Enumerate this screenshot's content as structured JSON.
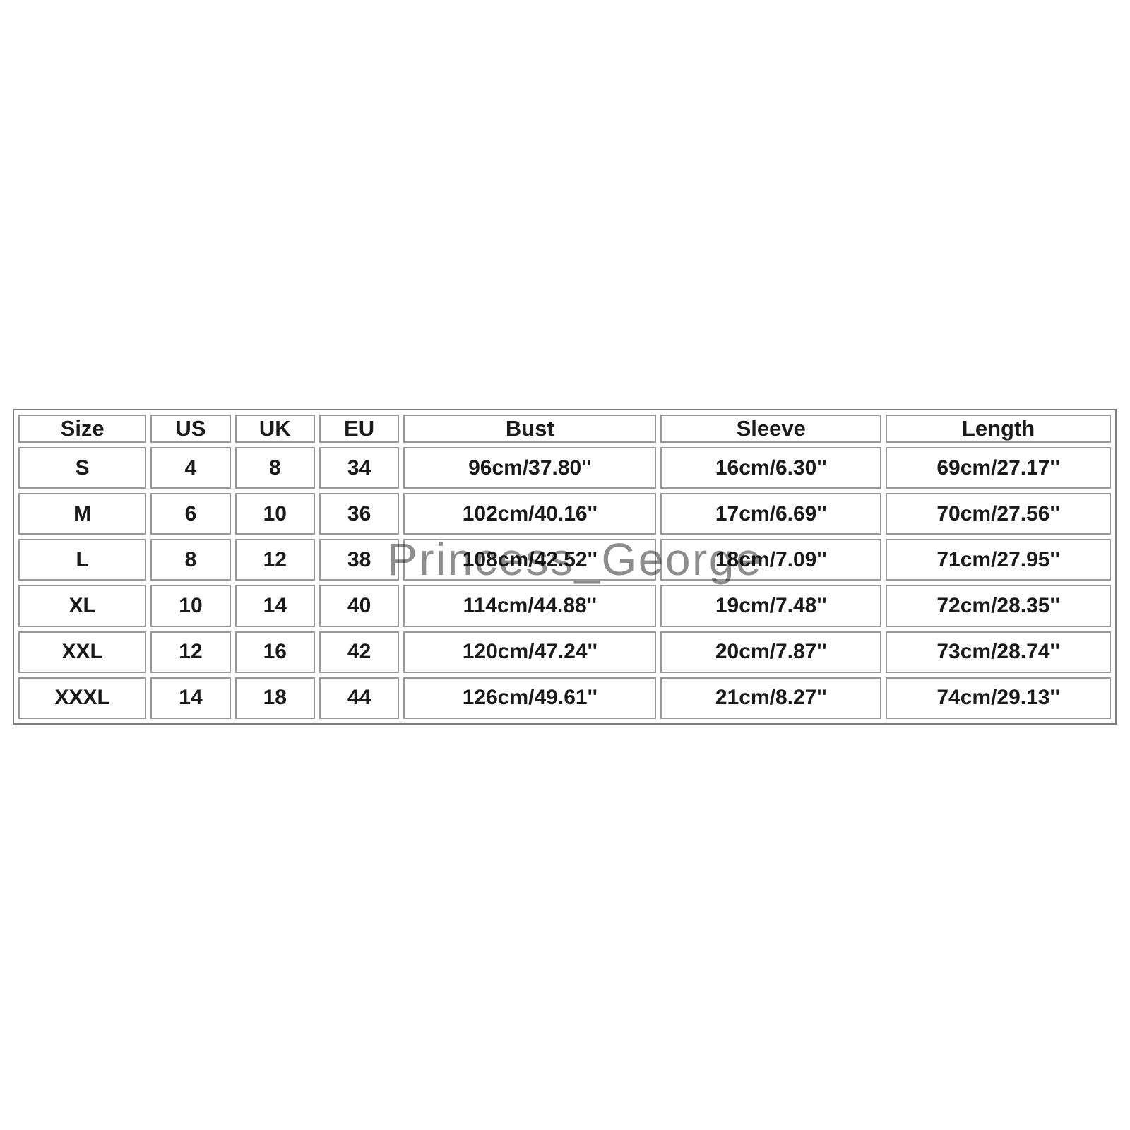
{
  "chart_data": {
    "type": "table",
    "title": "Garment size chart",
    "columns": [
      "Size",
      "US",
      "UK",
      "EU",
      "Bust",
      "Sleeve",
      "Length"
    ],
    "rows": [
      [
        "S",
        "4",
        "8",
        "34",
        "96cm/37.80''",
        "16cm/6.30''",
        "69cm/27.17''"
      ],
      [
        "M",
        "6",
        "10",
        "36",
        "102cm/40.16''",
        "17cm/6.69''",
        "70cm/27.56''"
      ],
      [
        "L",
        "8",
        "12",
        "38",
        "108cm/42.52''",
        "18cm/7.09''",
        "71cm/27.95''"
      ],
      [
        "XL",
        "10",
        "14",
        "40",
        "114cm/44.88''",
        "19cm/7.48''",
        "72cm/28.35''"
      ],
      [
        "XXL",
        "12",
        "16",
        "42",
        "120cm/47.24''",
        "20cm/7.87''",
        "73cm/28.74''"
      ],
      [
        "XXXL",
        "14",
        "18",
        "44",
        "126cm/49.61''",
        "21cm/8.27''",
        "74cm/29.13''"
      ]
    ],
    "column_width_percents": [
      12.0,
      7.5,
      7.5,
      7.5,
      23.7,
      20.7,
      21.1
    ],
    "grid": true,
    "legend_position": "none"
  },
  "watermark": {
    "text": "Princess_George",
    "color": "#8d8d8d"
  },
  "colors": {
    "outer_border": "#7d7d7d",
    "cell_border": "#999999",
    "text": "#1a1a1a",
    "background": "#ffffff"
  }
}
